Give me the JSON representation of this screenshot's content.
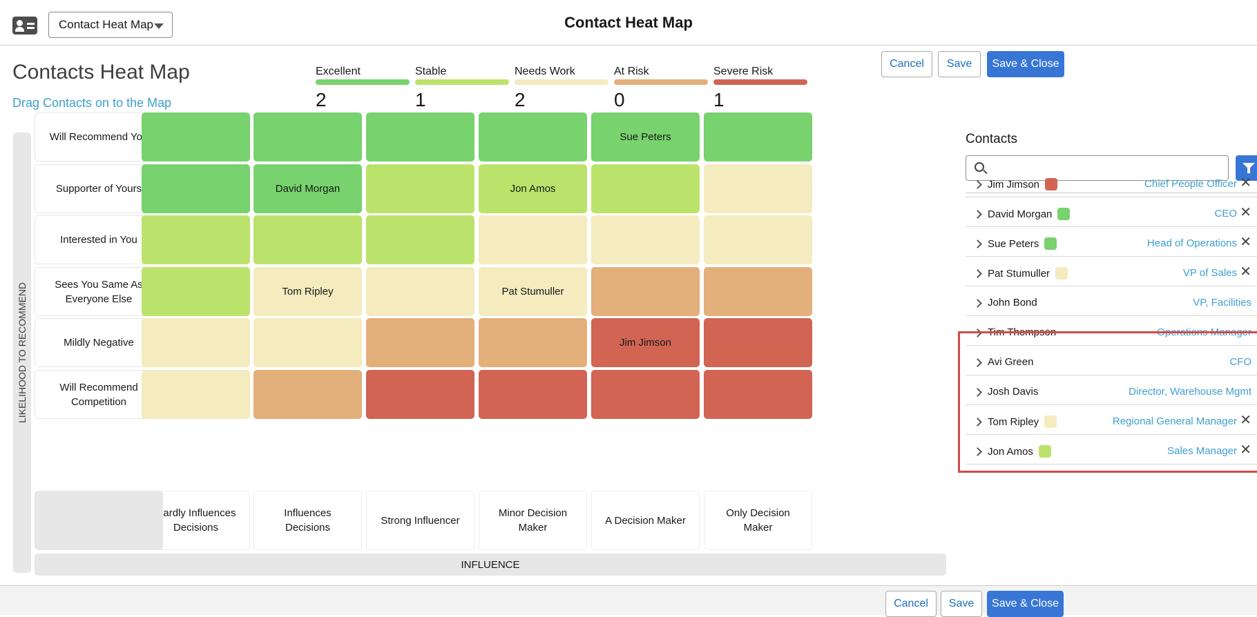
{
  "colors": {
    "excellent": "#78d26e",
    "stable": "#bbe36b",
    "needs_work": "#f4ebbe",
    "at_risk": "#e3af7b",
    "severe_risk": "#d16453",
    "accent": "#3876d6",
    "link": "#3f9fcf"
  },
  "topbar": {
    "app_icon": "contact-card-icon",
    "view_select": "Contact Heat Map",
    "title": "Contact Heat Map"
  },
  "header": {
    "title": "Contacts Heat Map",
    "subtitle": "Drag Contacts on to the Map"
  },
  "legend": [
    {
      "label": "Excellent",
      "count": "2",
      "color": "#78d26e"
    },
    {
      "label": "Stable",
      "count": "1",
      "color": "#bbe36b"
    },
    {
      "label": "Needs Work",
      "count": "2",
      "color": "#f4ebbe"
    },
    {
      "label": "At Risk",
      "count": "0",
      "color": "#e3af7b"
    },
    {
      "label": "Severe Risk",
      "count": "1",
      "color": "#d16453"
    }
  ],
  "buttons": {
    "cancel": "Cancel",
    "save": "Save",
    "save_close": "Save & Close"
  },
  "heatmap": {
    "y_axis_label": "LIKELIHOOD TO RECOMMEND",
    "x_axis_label": "INFLUENCE",
    "rows": [
      "Will Recommend You",
      "Supporter of Yours",
      "Interested in You",
      "Sees You Same As Everyone Else",
      "Mildly Negative",
      "Will Recommend Competition"
    ],
    "columns": [
      "Hardly Influences Decisions",
      "Influences Decisions",
      "Strong Influencer",
      "Minor Decision Maker",
      "A Decision Maker",
      "Only Decision Maker"
    ],
    "cells": [
      [
        "excellent",
        "excellent",
        "excellent",
        "excellent",
        "excellent",
        "excellent"
      ],
      [
        "excellent",
        "excellent",
        "stable",
        "stable",
        "stable",
        "needs_work"
      ],
      [
        "stable",
        "stable",
        "stable",
        "needs_work",
        "needs_work",
        "needs_work"
      ],
      [
        "stable",
        "needs_work",
        "needs_work",
        "needs_work",
        "at_risk",
        "at_risk"
      ],
      [
        "needs_work",
        "needs_work",
        "at_risk",
        "at_risk",
        "severe_risk",
        "severe_risk"
      ],
      [
        "needs_work",
        "at_risk",
        "severe_risk",
        "severe_risk",
        "severe_risk",
        "severe_risk"
      ]
    ],
    "placed": [
      {
        "name": "Sue Peters",
        "row": 0,
        "col": 4
      },
      {
        "name": "David Morgan",
        "row": 1,
        "col": 1
      },
      {
        "name": "Jon Amos",
        "row": 1,
        "col": 3
      },
      {
        "name": "Tom Ripley",
        "row": 3,
        "col": 1
      },
      {
        "name": "Pat Stumuller",
        "row": 3,
        "col": 3
      },
      {
        "name": "Jim Jimson",
        "row": 4,
        "col": 4
      }
    ]
  },
  "contacts": {
    "title": "Contacts",
    "search_placeholder": "",
    "filter_icon": "filter-icon",
    "items": [
      {
        "name": "Jim Jimson",
        "title": "Chief People Officer",
        "status": "severe_risk",
        "placed": true
      },
      {
        "name": "David Morgan",
        "title": "CEO",
        "status": "excellent",
        "placed": true
      },
      {
        "name": "Sue Peters",
        "title": "Head of Operations",
        "status": "excellent",
        "placed": true
      },
      {
        "name": "Pat Stumuller",
        "title": "VP of Sales",
        "status": "needs_work",
        "placed": true
      },
      {
        "name": "John Bond",
        "title": "VP, Facilities",
        "status": null,
        "placed": false
      },
      {
        "name": "Tim Thompson",
        "title": "Operations Manager",
        "status": null,
        "placed": false
      },
      {
        "name": "Avi Green",
        "title": "CFO",
        "status": null,
        "placed": false
      },
      {
        "name": "Josh Davis",
        "title": "Director, Warehouse Mgmt",
        "status": null,
        "placed": false
      },
      {
        "name": "Tom Ripley",
        "title": "Regional General Manager",
        "status": "needs_work",
        "placed": true
      },
      {
        "name": "Jon Amos",
        "title": "Sales Manager",
        "status": "stable",
        "placed": true
      }
    ]
  }
}
